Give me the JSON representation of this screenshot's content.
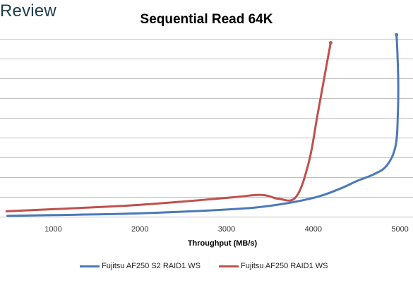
{
  "brand": {
    "text": "Review"
  },
  "chart_data": {
    "type": "line",
    "title": "Sequential Read 64K",
    "xlabel": "Throughput (MB/s)",
    "ylabel": "",
    "xlim": [
      450,
      5150
    ],
    "ylim": [
      0,
      9
    ],
    "x_ticks": [
      1000,
      2000,
      3000,
      4000,
      5000
    ],
    "grid": "horizontal",
    "legend_position": "bottom",
    "series": [
      {
        "name": "Fujitsu AF250 S2 RAID1 WS",
        "color": "#4a79b8",
        "points": [
          [
            470,
            0.04
          ],
          [
            1000,
            0.08
          ],
          [
            2000,
            0.17
          ],
          [
            3000,
            0.36
          ],
          [
            3500,
            0.55
          ],
          [
            4000,
            0.95
          ],
          [
            4300,
            1.4
          ],
          [
            4500,
            1.8
          ],
          [
            4700,
            2.15
          ],
          [
            4850,
            2.6
          ],
          [
            4950,
            3.6
          ],
          [
            4975,
            5.2
          ],
          [
            4980,
            6.8
          ],
          [
            4970,
            8.3
          ],
          [
            4960,
            9.2
          ]
        ]
      },
      {
        "name": "Fujitsu AF250 RAID1 WS",
        "color": "#c0504d",
        "points": [
          [
            460,
            0.27
          ],
          [
            1000,
            0.38
          ],
          [
            2000,
            0.6
          ],
          [
            3000,
            0.95
          ],
          [
            3400,
            1.1
          ],
          [
            3600,
            0.9
          ],
          [
            3800,
            1.0
          ],
          [
            3950,
            2.8
          ],
          [
            4050,
            5.2
          ],
          [
            4150,
            7.6
          ],
          [
            4200,
            8.8
          ]
        ]
      }
    ]
  }
}
